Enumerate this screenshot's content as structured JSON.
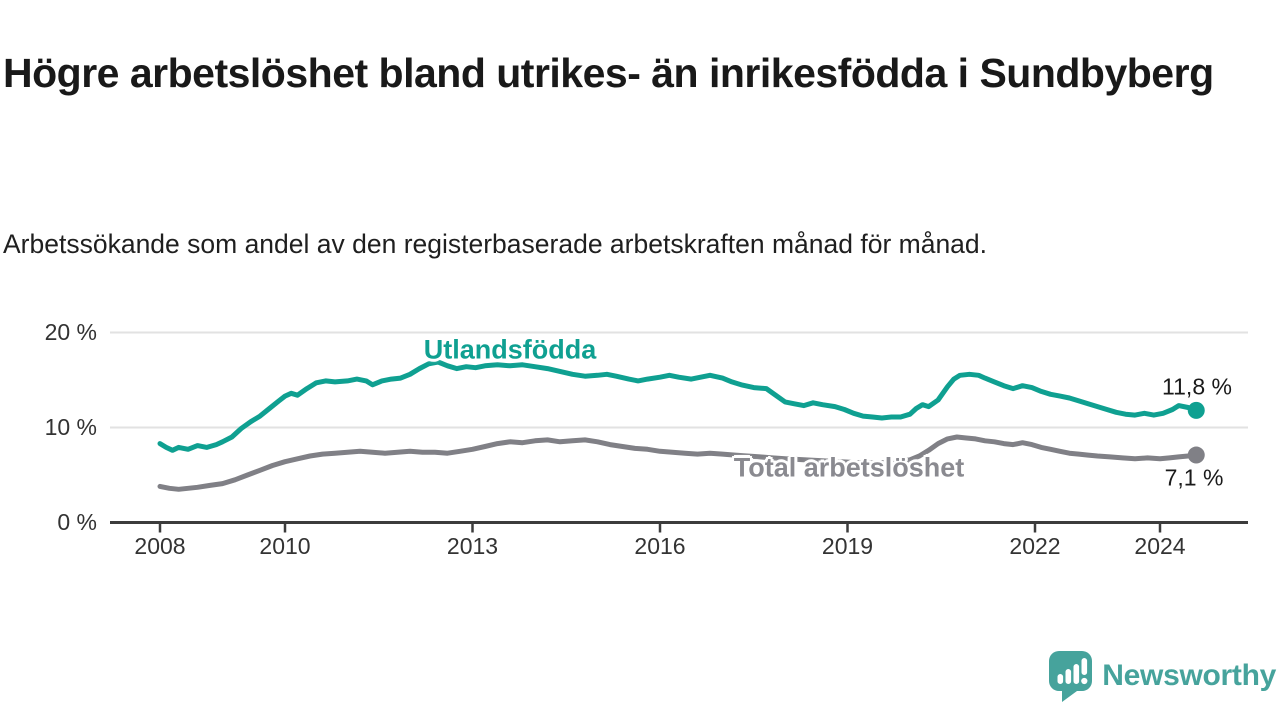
{
  "title": "Högre arbetslöshet bland utrikes- än inrikesfödda i Sundbyberg",
  "subtitle": "Arbetssökande som andel av den registerbaserade arbetskraften månad för månad.",
  "colors": {
    "series_foreign_born": "#0FA091",
    "series_total": "#808086",
    "grid": "#E2E2E2",
    "axis": "#3C3C3C",
    "tick_text": "#333333",
    "title_text": "#191919",
    "logo_teal": "#46A39C"
  },
  "chart_data": {
    "type": "line",
    "title": "Högre arbetslöshet bland utrikes- än inrikesfödda i Sundbyberg",
    "subtitle": "Arbetssökande som andel av den registerbaserade arbetskraften månad för månad.",
    "xlabel": "",
    "ylabel": "",
    "xlim": [
      2008,
      2024.58
    ],
    "ylim": [
      0,
      21
    ],
    "grid": "horizontal",
    "legend_position": "inline-labels",
    "x_ticks": [
      2008,
      2010,
      2013,
      2016,
      2019,
      2022,
      2024
    ],
    "y_ticks": [
      {
        "value": 0,
        "label": "0 %"
      },
      {
        "value": 10,
        "label": "10 %"
      },
      {
        "value": 20,
        "label": "20 %"
      }
    ],
    "series": [
      {
        "name": "Utlandsfödda",
        "color": "#0FA091",
        "end_label": "11,8 %",
        "end_value": 11.8,
        "points": [
          [
            2008.0,
            8.3
          ],
          [
            2008.1,
            7.9
          ],
          [
            2008.2,
            7.6
          ],
          [
            2008.3,
            7.9
          ],
          [
            2008.45,
            7.7
          ],
          [
            2008.6,
            8.1
          ],
          [
            2008.75,
            7.9
          ],
          [
            2008.9,
            8.2
          ],
          [
            2009.0,
            8.5
          ],
          [
            2009.15,
            9.0
          ],
          [
            2009.3,
            9.9
          ],
          [
            2009.45,
            10.6
          ],
          [
            2009.6,
            11.2
          ],
          [
            2009.75,
            12.0
          ],
          [
            2009.9,
            12.8
          ],
          [
            2010.0,
            13.3
          ],
          [
            2010.1,
            13.6
          ],
          [
            2010.2,
            13.4
          ],
          [
            2010.35,
            14.1
          ],
          [
            2010.5,
            14.7
          ],
          [
            2010.65,
            14.9
          ],
          [
            2010.8,
            14.8
          ],
          [
            2011.0,
            14.9
          ],
          [
            2011.15,
            15.1
          ],
          [
            2011.3,
            14.9
          ],
          [
            2011.4,
            14.5
          ],
          [
            2011.55,
            14.9
          ],
          [
            2011.7,
            15.1
          ],
          [
            2011.85,
            15.2
          ],
          [
            2012.0,
            15.6
          ],
          [
            2012.15,
            16.2
          ],
          [
            2012.3,
            16.7
          ],
          [
            2012.45,
            16.9
          ],
          [
            2012.6,
            16.5
          ],
          [
            2012.75,
            16.2
          ],
          [
            2012.9,
            16.4
          ],
          [
            2013.05,
            16.3
          ],
          [
            2013.2,
            16.5
          ],
          [
            2013.4,
            16.6
          ],
          [
            2013.6,
            16.5
          ],
          [
            2013.8,
            16.6
          ],
          [
            2014.0,
            16.4
          ],
          [
            2014.2,
            16.2
          ],
          [
            2014.4,
            15.9
          ],
          [
            2014.6,
            15.6
          ],
          [
            2014.8,
            15.4
          ],
          [
            2015.0,
            15.5
          ],
          [
            2015.15,
            15.6
          ],
          [
            2015.3,
            15.4
          ],
          [
            2015.5,
            15.1
          ],
          [
            2015.65,
            14.9
          ],
          [
            2015.8,
            15.1
          ],
          [
            2016.0,
            15.3
          ],
          [
            2016.15,
            15.5
          ],
          [
            2016.3,
            15.3
          ],
          [
            2016.5,
            15.1
          ],
          [
            2016.65,
            15.3
          ],
          [
            2016.8,
            15.5
          ],
          [
            2017.0,
            15.2
          ],
          [
            2017.15,
            14.8
          ],
          [
            2017.3,
            14.5
          ],
          [
            2017.5,
            14.2
          ],
          [
            2017.7,
            14.1
          ],
          [
            2017.85,
            13.4
          ],
          [
            2018.0,
            12.7
          ],
          [
            2018.15,
            12.5
          ],
          [
            2018.3,
            12.3
          ],
          [
            2018.45,
            12.6
          ],
          [
            2018.6,
            12.4
          ],
          [
            2018.8,
            12.2
          ],
          [
            2018.95,
            11.9
          ],
          [
            2019.1,
            11.5
          ],
          [
            2019.25,
            11.2
          ],
          [
            2019.4,
            11.1
          ],
          [
            2019.55,
            11.0
          ],
          [
            2019.7,
            11.1
          ],
          [
            2019.85,
            11.1
          ],
          [
            2020.0,
            11.4
          ],
          [
            2020.1,
            12.0
          ],
          [
            2020.2,
            12.4
          ],
          [
            2020.3,
            12.2
          ],
          [
            2020.45,
            12.9
          ],
          [
            2020.6,
            14.3
          ],
          [
            2020.7,
            15.1
          ],
          [
            2020.8,
            15.5
          ],
          [
            2020.95,
            15.6
          ],
          [
            2021.1,
            15.5
          ],
          [
            2021.2,
            15.2
          ],
          [
            2021.35,
            14.8
          ],
          [
            2021.5,
            14.4
          ],
          [
            2021.65,
            14.1
          ],
          [
            2021.8,
            14.4
          ],
          [
            2021.95,
            14.2
          ],
          [
            2022.1,
            13.8
          ],
          [
            2022.25,
            13.5
          ],
          [
            2022.4,
            13.3
          ],
          [
            2022.55,
            13.1
          ],
          [
            2022.7,
            12.8
          ],
          [
            2022.85,
            12.5
          ],
          [
            2023.0,
            12.2
          ],
          [
            2023.15,
            11.9
          ],
          [
            2023.3,
            11.6
          ],
          [
            2023.45,
            11.4
          ],
          [
            2023.6,
            11.3
          ],
          [
            2023.75,
            11.5
          ],
          [
            2023.9,
            11.3
          ],
          [
            2024.05,
            11.5
          ],
          [
            2024.2,
            11.9
          ],
          [
            2024.3,
            12.3
          ],
          [
            2024.45,
            12.1
          ],
          [
            2024.58,
            11.8
          ]
        ]
      },
      {
        "name": "Total arbetslöshet",
        "color": "#808086",
        "end_label": "7,1 %",
        "end_value": 7.1,
        "points": [
          [
            2008.0,
            3.8
          ],
          [
            2008.15,
            3.6
          ],
          [
            2008.3,
            3.5
          ],
          [
            2008.45,
            3.6
          ],
          [
            2008.6,
            3.7
          ],
          [
            2008.8,
            3.9
          ],
          [
            2009.0,
            4.1
          ],
          [
            2009.2,
            4.5
          ],
          [
            2009.4,
            5.0
          ],
          [
            2009.6,
            5.5
          ],
          [
            2009.8,
            6.0
          ],
          [
            2010.0,
            6.4
          ],
          [
            2010.2,
            6.7
          ],
          [
            2010.4,
            7.0
          ],
          [
            2010.6,
            7.2
          ],
          [
            2010.8,
            7.3
          ],
          [
            2011.0,
            7.4
          ],
          [
            2011.2,
            7.5
          ],
          [
            2011.4,
            7.4
          ],
          [
            2011.6,
            7.3
          ],
          [
            2011.8,
            7.4
          ],
          [
            2012.0,
            7.5
          ],
          [
            2012.2,
            7.4
          ],
          [
            2012.4,
            7.4
          ],
          [
            2012.6,
            7.3
          ],
          [
            2012.8,
            7.5
          ],
          [
            2013.0,
            7.7
          ],
          [
            2013.2,
            8.0
          ],
          [
            2013.4,
            8.3
          ],
          [
            2013.6,
            8.5
          ],
          [
            2013.8,
            8.4
          ],
          [
            2014.0,
            8.6
          ],
          [
            2014.2,
            8.7
          ],
          [
            2014.4,
            8.5
          ],
          [
            2014.6,
            8.6
          ],
          [
            2014.8,
            8.7
          ],
          [
            2015.0,
            8.5
          ],
          [
            2015.2,
            8.2
          ],
          [
            2015.4,
            8.0
          ],
          [
            2015.6,
            7.8
          ],
          [
            2015.8,
            7.7
          ],
          [
            2016.0,
            7.5
          ],
          [
            2016.2,
            7.4
          ],
          [
            2016.4,
            7.3
          ],
          [
            2016.6,
            7.2
          ],
          [
            2016.8,
            7.3
          ],
          [
            2017.0,
            7.2
          ],
          [
            2017.2,
            7.1
          ],
          [
            2017.4,
            7.0
          ],
          [
            2017.6,
            6.9
          ],
          [
            2017.8,
            6.8
          ],
          [
            2018.0,
            6.7
          ],
          [
            2018.3,
            6.6
          ],
          [
            2018.6,
            6.5
          ],
          [
            2018.9,
            6.4
          ],
          [
            2019.2,
            6.3
          ],
          [
            2019.5,
            6.3
          ],
          [
            2019.8,
            6.4
          ],
          [
            2020.0,
            6.6
          ],
          [
            2020.15,
            7.0
          ],
          [
            2020.3,
            7.6
          ],
          [
            2020.45,
            8.3
          ],
          [
            2020.6,
            8.8
          ],
          [
            2020.75,
            9.0
          ],
          [
            2020.9,
            8.9
          ],
          [
            2021.05,
            8.8
          ],
          [
            2021.2,
            8.6
          ],
          [
            2021.35,
            8.5
          ],
          [
            2021.5,
            8.3
          ],
          [
            2021.65,
            8.2
          ],
          [
            2021.8,
            8.4
          ],
          [
            2021.95,
            8.2
          ],
          [
            2022.1,
            7.9
          ],
          [
            2022.25,
            7.7
          ],
          [
            2022.4,
            7.5
          ],
          [
            2022.55,
            7.3
          ],
          [
            2022.7,
            7.2
          ],
          [
            2022.85,
            7.1
          ],
          [
            2023.0,
            7.0
          ],
          [
            2023.2,
            6.9
          ],
          [
            2023.4,
            6.8
          ],
          [
            2023.6,
            6.7
          ],
          [
            2023.8,
            6.8
          ],
          [
            2024.0,
            6.7
          ],
          [
            2024.15,
            6.8
          ],
          [
            2024.3,
            6.9
          ],
          [
            2024.45,
            7.0
          ],
          [
            2024.58,
            7.1
          ]
        ]
      }
    ]
  },
  "logo": {
    "text": "Newsworthy",
    "icon": "newsworthy-chart-bubble-icon"
  }
}
